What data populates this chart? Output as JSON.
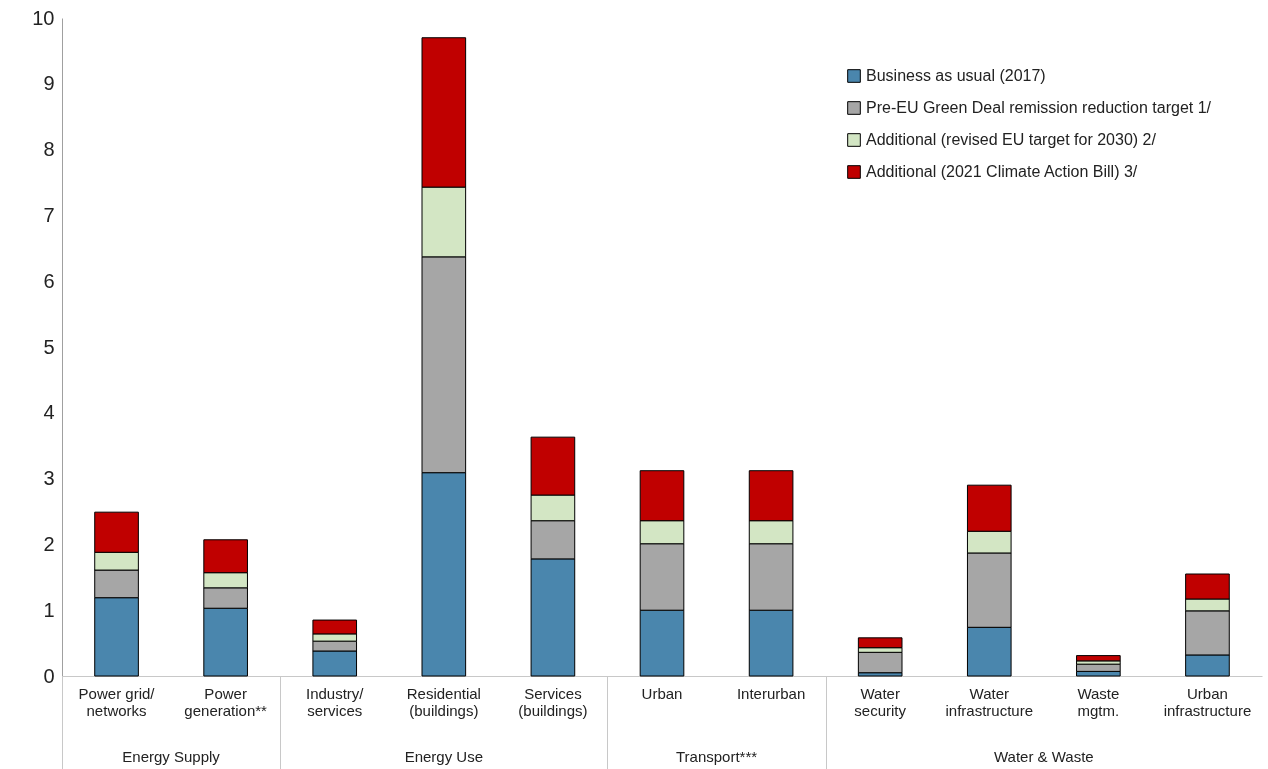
{
  "chart_data": {
    "type": "bar",
    "stacked": true,
    "categories": [
      "Power grid/ networks",
      "Power generation**",
      "Industry/ services",
      "Residential (buildings)",
      "Services (buildings)",
      "Urban",
      "Interurban",
      "Water security",
      "Water infrastructure",
      "Waste mgtm.",
      "Urban infrastructure"
    ],
    "annotations": [
      "Energy Supply",
      "Energy Use",
      "Transport***",
      "Water & Waste"
    ],
    "series": [
      {
        "name": "Business as usual (2017)",
        "color": "#4a86ad",
        "values": [
          1.19,
          1.03,
          0.38,
          3.09,
          1.78,
          1.0,
          1.0,
          0.05,
          0.74,
          0.07,
          0.32
        ]
      },
      {
        "name": "Pre-EU Green Deal remission reduction target 1/",
        "color": "#a6a6a6",
        "values": [
          0.42,
          0.31,
          0.15,
          3.28,
          0.58,
          1.01,
          1.01,
          0.31,
          1.13,
          0.11,
          0.67
        ]
      },
      {
        "name": "Additional (revised EU target for 2030) 2/",
        "color": "#d3e6c4",
        "values": [
          0.27,
          0.23,
          0.11,
          1.06,
          0.39,
          0.35,
          0.35,
          0.07,
          0.33,
          0.05,
          0.18
        ]
      },
      {
        "name": "Additional (2021 Climate Action Bill) 3/",
        "color": "#c00000",
        "values": [
          0.61,
          0.5,
          0.21,
          2.27,
          0.88,
          0.76,
          0.76,
          0.15,
          0.7,
          0.08,
          0.38
        ]
      }
    ],
    "ylim": [
      0,
      10
    ],
    "yticks": [
      0,
      1,
      2,
      3,
      4,
      5,
      6,
      7,
      8,
      9,
      10
    ],
    "grid": false,
    "legend": "top right"
  }
}
